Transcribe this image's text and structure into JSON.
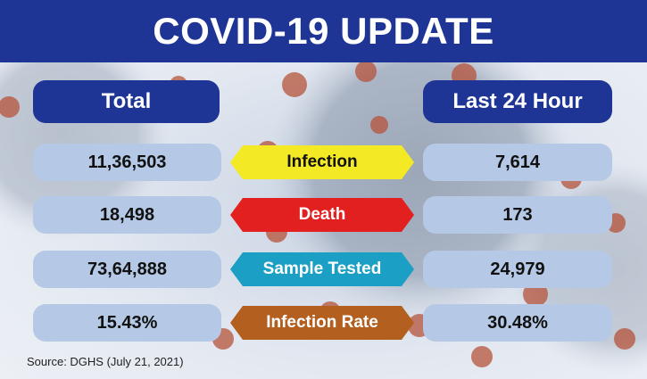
{
  "header": {
    "title": "COVID-19 UPDATE"
  },
  "columns": {
    "total": "Total",
    "last24": "Last 24 Hour"
  },
  "rows": [
    {
      "label": "Infection",
      "total": "11,36,503",
      "last24": "7,614",
      "color": "#f4e925",
      "text_color": "#111111"
    },
    {
      "label": "Death",
      "total": "18,498",
      "last24": "173",
      "color": "#e2201f",
      "text_color": "#ffffff"
    },
    {
      "label": "Sample Tested",
      "total": "73,64,888",
      "last24": "24,979",
      "color": "#1b9fc4",
      "text_color": "#ffffff"
    },
    {
      "label": "Infection Rate",
      "total": "15.43%",
      "last24": "30.48%",
      "color": "#b25f1f",
      "text_color": "#ffffff"
    }
  ],
  "source": "Source: DGHS (July 21, 2021)",
  "colors": {
    "header_bg": "#1f3596",
    "cell_bg": "#b5c9e6"
  },
  "icons": [
    "virus-illustration"
  ]
}
